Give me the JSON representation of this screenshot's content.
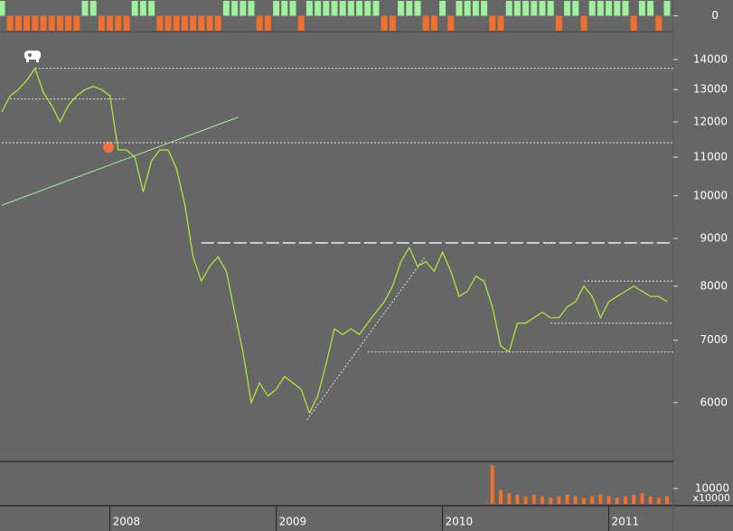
{
  "chart_data": {
    "type": "line",
    "categories": [
      null,
      null,
      null,
      null,
      null,
      null,
      null,
      null,
      null,
      null,
      null,
      null,
      null,
      "2008",
      null,
      null,
      null,
      null,
      null,
      null,
      null,
      null,
      null,
      null,
      null,
      null,
      null,
      null,
      null,
      null,
      null,
      null,
      null,
      "2009",
      null,
      null,
      null,
      null,
      null,
      null,
      null,
      null,
      null,
      null,
      null,
      null,
      null,
      null,
      null,
      null,
      null,
      null,
      null,
      "2010",
      null,
      null,
      null,
      null,
      null,
      null,
      null,
      null,
      null,
      null,
      null,
      null,
      null,
      null,
      null,
      null,
      null,
      null,
      null,
      "2011",
      null,
      null,
      null,
      null,
      null,
      null,
      null
    ],
    "series": [
      {
        "color": "#b4ee3c",
        "values": [
          12300,
          12800,
          13000,
          13300,
          13700,
          12900,
          12500,
          12000,
          12500,
          12800,
          13000,
          13100,
          13000,
          12800,
          11200,
          11200,
          11000,
          10100,
          10900,
          11200,
          11200,
          10700,
          9800,
          8600,
          8100,
          8400,
          8600,
          8300,
          7500,
          6800,
          6000,
          6300,
          6100,
          6200,
          6400,
          6300,
          6200,
          5850,
          6100,
          6600,
          7200,
          7100,
          7200,
          7100,
          7300,
          7500,
          7700,
          8000,
          8500,
          8800,
          8400,
          8500,
          8300,
          8700,
          8300,
          7800,
          7900,
          8200,
          8100,
          7600,
          6900,
          6800,
          7300,
          7300,
          7400,
          7500,
          7400,
          7400,
          7600,
          7700,
          8000,
          7800,
          7400,
          7700,
          7800,
          7900,
          8000,
          7900,
          7800,
          7800,
          7700
        ]
      }
    ],
    "log_scale": true,
    "ylim": [
      5200,
      15000
    ],
    "yticks": [
      6000,
      7000,
      8000,
      9000,
      10000,
      11000,
      12000,
      13000,
      14000
    ],
    "hlines": [
      {
        "value": 13700,
        "from": 4,
        "to": 81,
        "style": "dotted"
      },
      {
        "value": 12700,
        "from": 1,
        "to": 15,
        "style": "dotted"
      },
      {
        "value": 11400,
        "from": 0,
        "to": 81,
        "style": "dotted"
      },
      {
        "value": 8900,
        "from": 24,
        "to": 81,
        "style": "dashed"
      },
      {
        "value": 8100,
        "from": 70,
        "to": 81,
        "style": "dotted"
      },
      {
        "value": 7300,
        "from": 66,
        "to": 81,
        "style": "dotted"
      },
      {
        "value": 6800,
        "from": 44,
        "to": 81,
        "style": "dotted"
      }
    ],
    "trendlines": [
      {
        "from": 0,
        "to": 28.4,
        "start": 9770,
        "end": 12140,
        "style": "solid",
        "color": "#a0f0a0"
      },
      {
        "from": 36.7,
        "to": 50.9,
        "start": 5750,
        "end": 8600,
        "style": "dotted",
        "color": "#dddddd"
      }
    ],
    "indicator": {
      "ylim": [
        -1,
        1
      ],
      "yticks": [
        0
      ],
      "up_color": "#a0f0a0",
      "down_color": "#f07030",
      "values": [
        1,
        -1,
        -1,
        -1,
        -1,
        -1,
        -1,
        -1,
        -1,
        -1,
        1,
        1,
        -1,
        -1,
        -1,
        -1,
        1,
        1,
        1,
        -1,
        -1,
        -1,
        -1,
        -1,
        -1,
        -1,
        -1,
        1,
        1,
        1,
        1,
        -1,
        -1,
        1,
        1,
        1,
        -1,
        1,
        1,
        1,
        1,
        1,
        1,
        1,
        1,
        1,
        -1,
        -1,
        1,
        1,
        1,
        -1,
        -1,
        1,
        -1,
        1,
        1,
        1,
        1,
        -1,
        -1,
        1,
        1,
        1,
        1,
        1,
        1,
        -1,
        1,
        1,
        -1,
        1,
        1,
        1,
        1,
        1,
        -1,
        1,
        1,
        -1,
        1
      ]
    },
    "volume": {
      "ylim": [
        0,
        27000
      ],
      "yticks": [
        10000
      ],
      "unit_label": "x10000",
      "color": "#f07030",
      "values": [
        null,
        null,
        null,
        null,
        null,
        null,
        null,
        null,
        null,
        null,
        null,
        null,
        null,
        null,
        null,
        null,
        null,
        null,
        null,
        null,
        null,
        null,
        null,
        null,
        null,
        null,
        null,
        null,
        null,
        null,
        null,
        null,
        null,
        null,
        null,
        null,
        null,
        null,
        null,
        null,
        null,
        null,
        null,
        null,
        null,
        null,
        null,
        null,
        null,
        null,
        null,
        null,
        null,
        null,
        null,
        null,
        null,
        null,
        null,
        25000,
        9000,
        7000,
        6000,
        5000,
        6000,
        5000,
        4000,
        5000,
        6000,
        5000,
        4000,
        5000,
        6000,
        5000,
        4000,
        5000,
        6000,
        7000,
        5000,
        4000,
        5000
      ]
    }
  }
}
